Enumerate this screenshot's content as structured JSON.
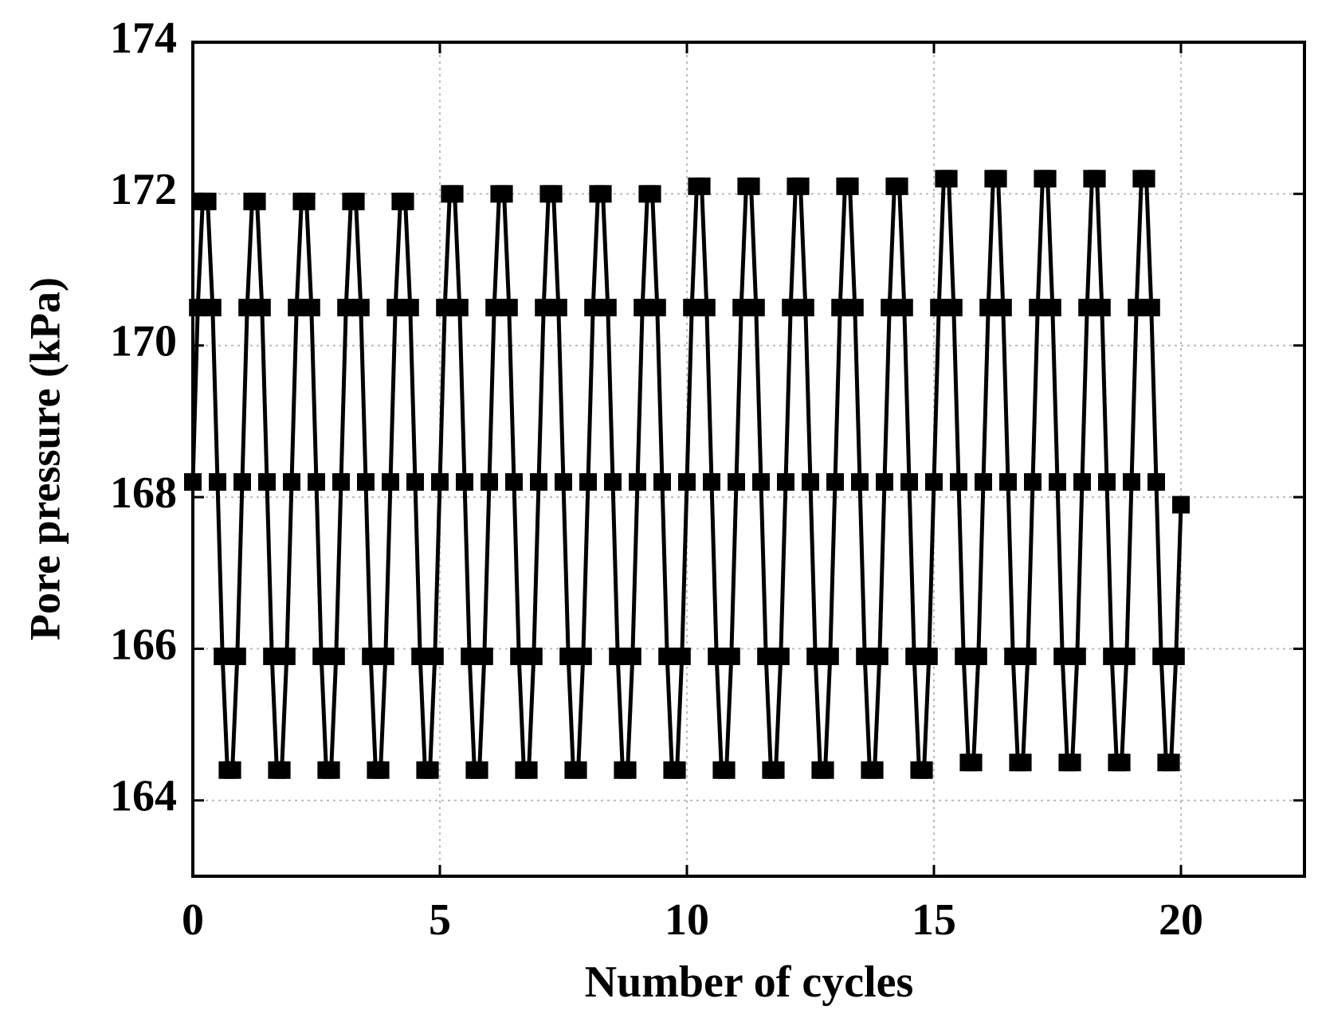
{
  "chart_data": {
    "type": "line",
    "xlabel": "Number of cycles",
    "ylabel": "Pore pressure (kPa)",
    "xlim": [
      0,
      22.5
    ],
    "ylim": [
      163,
      174
    ],
    "xticks": [
      0,
      5,
      10,
      15,
      20
    ],
    "yticks": [
      164,
      166,
      168,
      170,
      172,
      174
    ],
    "grid": true,
    "x": [
      0,
      0.1,
      0.2,
      0.3,
      0.4,
      0.5,
      0.6,
      0.7,
      0.8,
      0.9,
      1,
      1.1,
      1.2,
      1.3,
      1.4,
      1.5,
      1.6,
      1.7,
      1.8,
      1.9,
      2,
      2.1,
      2.2,
      2.3,
      2.4,
      2.5,
      2.6,
      2.7,
      2.8,
      2.9,
      3,
      3.1,
      3.2,
      3.3,
      3.4,
      3.5,
      3.6,
      3.7,
      3.8,
      3.9,
      4,
      4.1,
      4.2,
      4.3,
      4.4,
      4.5,
      4.6,
      4.7,
      4.8,
      4.9,
      5,
      5.1,
      5.2,
      5.3,
      5.4,
      5.5,
      5.6,
      5.7,
      5.8,
      5.9,
      6,
      6.1,
      6.2,
      6.3,
      6.4,
      6.5,
      6.6,
      6.7,
      6.8,
      6.9,
      7,
      7.1,
      7.2,
      7.3,
      7.4,
      7.5,
      7.6,
      7.7,
      7.8,
      7.9,
      8,
      8.1,
      8.2,
      8.3,
      8.4,
      8.5,
      8.6,
      8.7,
      8.8,
      8.9,
      9,
      9.1,
      9.2,
      9.3,
      9.4,
      9.5,
      9.6,
      9.7,
      9.8,
      9.9,
      10,
      10.1,
      10.2,
      10.3,
      10.4,
      10.5,
      10.6,
      10.7,
      10.8,
      10.9,
      11,
      11.1,
      11.2,
      11.3,
      11.4,
      11.5,
      11.6,
      11.7,
      11.8,
      11.9,
      12,
      12.1,
      12.2,
      12.3,
      12.4,
      12.5,
      12.6,
      12.7,
      12.8,
      12.9,
      13,
      13.1,
      13.2,
      13.3,
      13.4,
      13.5,
      13.6,
      13.7,
      13.8,
      13.9,
      14,
      14.1,
      14.2,
      14.3,
      14.4,
      14.5,
      14.6,
      14.7,
      14.8,
      14.9,
      15,
      15.1,
      15.2,
      15.3,
      15.4,
      15.5,
      15.6,
      15.7,
      15.8,
      15.9,
      16,
      16.1,
      16.2,
      16.3,
      16.4,
      16.5,
      16.6,
      16.7,
      16.8,
      16.9,
      17,
      17.1,
      17.2,
      17.3,
      17.4,
      17.5,
      17.6,
      17.7,
      17.8,
      17.9,
      18,
      18.1,
      18.2,
      18.3,
      18.4,
      18.5,
      18.6,
      18.7,
      18.8,
      18.9,
      19,
      19.1,
      19.2,
      19.3,
      19.4,
      19.5,
      19.6,
      19.7,
      19.8,
      19.9,
      20
    ],
    "series": [
      {
        "color": "#000000",
        "values": [
          168.2,
          170.5,
          171.9,
          171.9,
          170.5,
          168.2,
          165.9,
          164.4,
          164.4,
          165.9,
          168.2,
          170.5,
          171.9,
          171.9,
          170.5,
          168.2,
          165.9,
          164.4,
          164.4,
          165.9,
          168.2,
          170.5,
          171.9,
          171.9,
          170.5,
          168.2,
          165.9,
          164.4,
          164.4,
          165.9,
          168.2,
          170.5,
          171.9,
          171.9,
          170.5,
          168.2,
          165.9,
          164.4,
          164.4,
          165.9,
          168.2,
          170.5,
          171.9,
          171.9,
          170.5,
          168.2,
          165.9,
          164.4,
          164.4,
          165.9,
          168.2,
          170.5,
          172.0,
          172.0,
          170.5,
          168.2,
          165.9,
          164.4,
          164.4,
          165.9,
          168.2,
          170.5,
          172.0,
          172.0,
          170.5,
          168.2,
          165.9,
          164.4,
          164.4,
          165.9,
          168.2,
          170.5,
          172.0,
          172.0,
          170.5,
          168.2,
          165.9,
          164.4,
          164.4,
          165.9,
          168.2,
          170.5,
          172.0,
          172.0,
          170.5,
          168.2,
          165.9,
          164.4,
          164.4,
          165.9,
          168.2,
          170.5,
          172.0,
          172.0,
          170.5,
          168.2,
          165.9,
          164.4,
          164.4,
          165.9,
          168.2,
          170.5,
          172.1,
          172.1,
          170.5,
          168.2,
          165.9,
          164.4,
          164.4,
          165.9,
          168.2,
          170.5,
          172.1,
          172.1,
          170.5,
          168.2,
          165.9,
          164.4,
          164.4,
          165.9,
          168.2,
          170.5,
          172.1,
          172.1,
          170.5,
          168.2,
          165.9,
          164.4,
          164.4,
          165.9,
          168.2,
          170.5,
          172.1,
          172.1,
          170.5,
          168.2,
          165.9,
          164.4,
          164.4,
          165.9,
          168.2,
          170.5,
          172.1,
          172.1,
          170.5,
          168.2,
          165.9,
          164.4,
          164.4,
          165.9,
          168.2,
          170.5,
          172.2,
          172.2,
          170.5,
          168.2,
          165.9,
          164.5,
          164.5,
          165.9,
          168.2,
          170.5,
          172.2,
          172.2,
          170.5,
          168.2,
          165.9,
          164.5,
          164.5,
          165.9,
          168.2,
          170.5,
          172.2,
          172.2,
          170.5,
          168.2,
          165.9,
          164.5,
          164.5,
          165.9,
          168.2,
          170.5,
          172.2,
          172.2,
          170.5,
          168.2,
          165.9,
          164.5,
          164.5,
          165.9,
          168.2,
          170.5,
          172.2,
          172.2,
          170.5,
          168.2,
          165.9,
          164.5,
          164.5,
          165.9,
          167.9
        ]
      }
    ]
  }
}
